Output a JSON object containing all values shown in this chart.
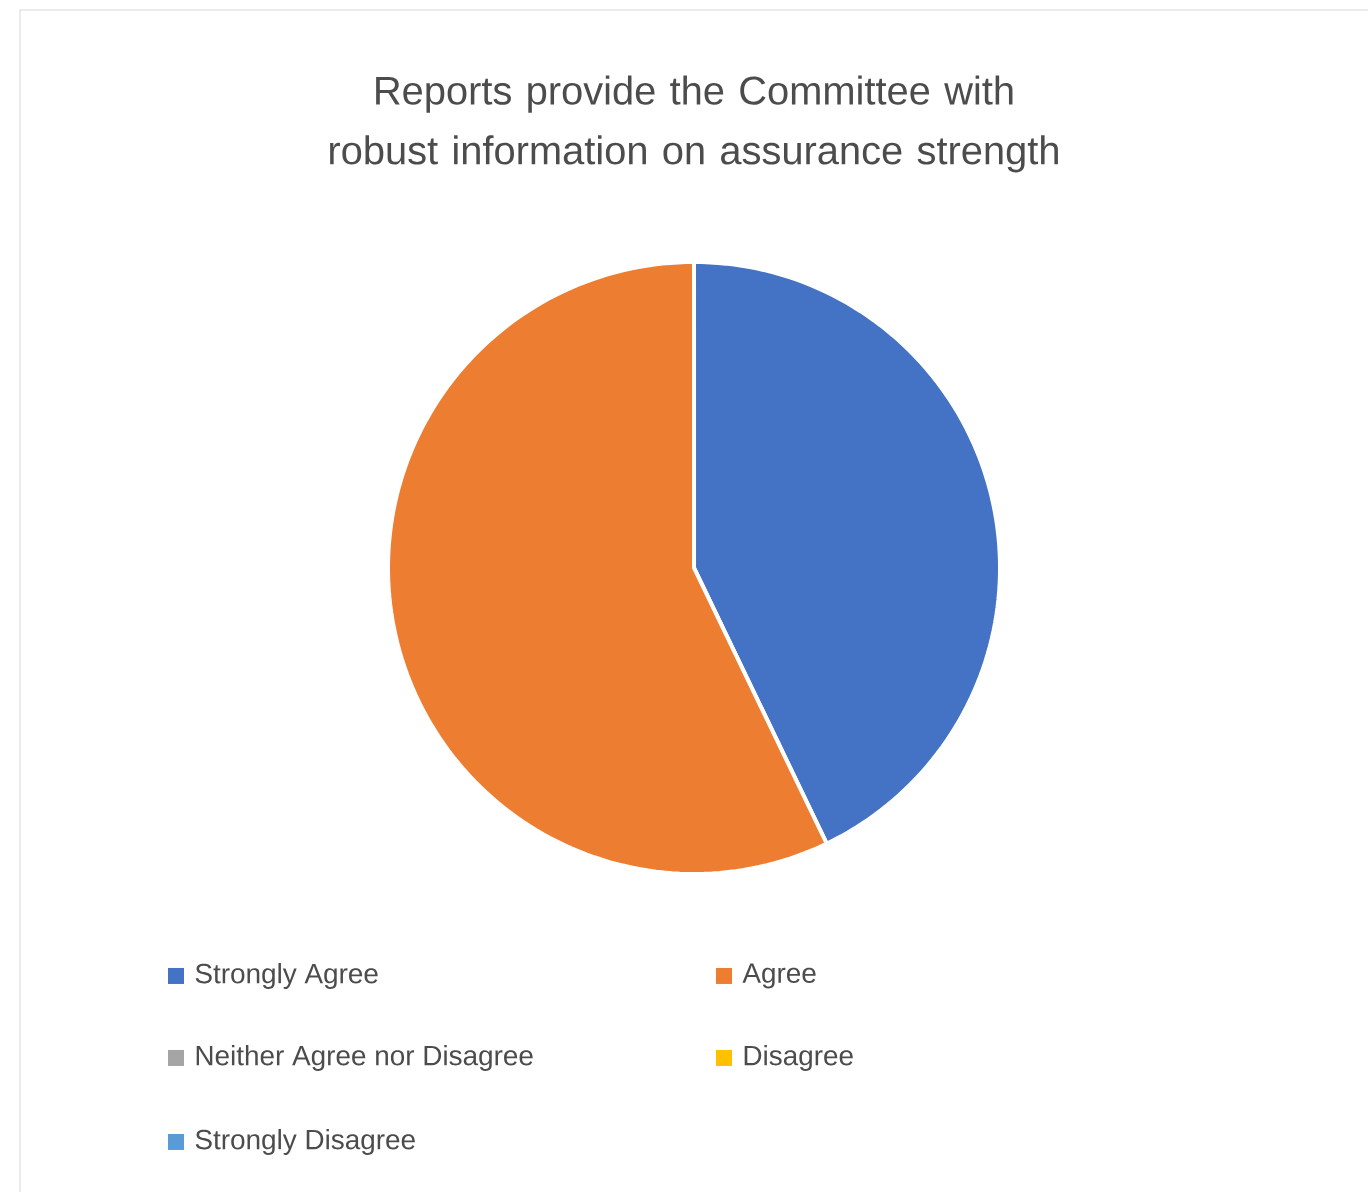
{
  "chart_data": {
    "type": "pie",
    "title": "Reports provide the Committee with robust information on assurance strength",
    "categories": [
      "Strongly Agree",
      "Agree",
      "Neither Agree nor Disagree",
      "Disagree",
      "Strongly Disagree"
    ],
    "values": [
      42.86,
      57.14,
      0,
      0,
      0
    ],
    "colors": [
      "#4472c4",
      "#ed7d31",
      "#a5a5a5",
      "#ffc000",
      "#5b9bd5"
    ],
    "legend": "bottom"
  }
}
